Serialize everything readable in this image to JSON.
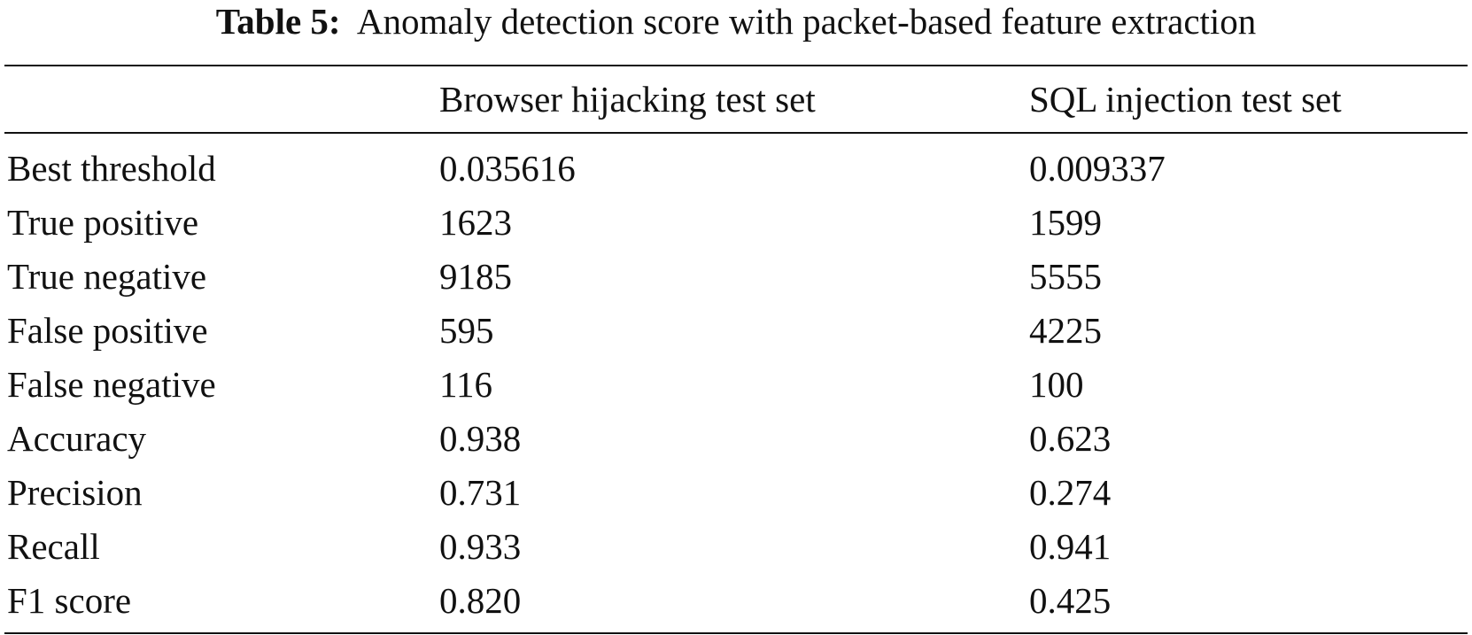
{
  "caption": {
    "label": "Table 5:",
    "text": "Anomaly detection score with packet-based feature extraction"
  },
  "table": {
    "headers": [
      "",
      "Browser hijacking test set",
      "SQL injection test set"
    ],
    "rows": [
      {
        "metric": "Best threshold",
        "browser": "0.035616",
        "sql": "0.009337"
      },
      {
        "metric": "True positive",
        "browser": "1623",
        "sql": "1599"
      },
      {
        "metric": "True negative",
        "browser": "9185",
        "sql": "5555"
      },
      {
        "metric": "False positive",
        "browser": "595",
        "sql": "4225"
      },
      {
        "metric": "False negative",
        "browser": "116",
        "sql": "100"
      },
      {
        "metric": "Accuracy",
        "browser": "0.938",
        "sql": "0.623"
      },
      {
        "metric": "Precision",
        "browser": "0.731",
        "sql": "0.274"
      },
      {
        "metric": "Recall",
        "browser": "0.933",
        "sql": "0.941"
      },
      {
        "metric": "F1 score",
        "browser": "0.820",
        "sql": "0.425"
      }
    ]
  }
}
